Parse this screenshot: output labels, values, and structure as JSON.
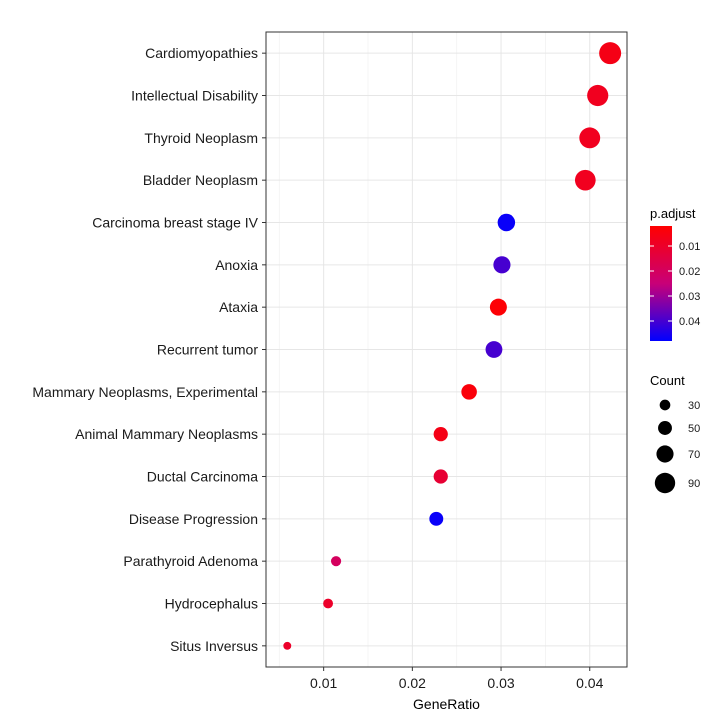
{
  "chart_data": {
    "type": "scatter",
    "title": "",
    "xlabel": "GeneRatio",
    "ylabel": "",
    "xlim": [
      0.0035,
      0.0442
    ],
    "xticks": [
      0.01,
      0.02,
      0.03,
      0.04
    ],
    "xtick_labels": [
      "0.01",
      "0.02",
      "0.03",
      "0.04"
    ],
    "grid": true,
    "points": [
      {
        "term": "Cardiomyopathies",
        "x": 0.0423,
        "count": 100,
        "p_adjust": 0.006
      },
      {
        "term": "Intellectual Disability",
        "x": 0.0409,
        "count": 95,
        "p_adjust": 0.008
      },
      {
        "term": "Thyroid Neoplasm",
        "x": 0.04,
        "count": 93,
        "p_adjust": 0.008
      },
      {
        "term": "Bladder Neoplasm",
        "x": 0.0395,
        "count": 92,
        "p_adjust": 0.008
      },
      {
        "term": "Carcinoma breast stage IV",
        "x": 0.0306,
        "count": 72,
        "p_adjust": 0.047
      },
      {
        "term": "Anoxia",
        "x": 0.0301,
        "count": 70,
        "p_adjust": 0.04
      },
      {
        "term": "Ataxia",
        "x": 0.0297,
        "count": 69,
        "p_adjust": 0.003
      },
      {
        "term": "Recurrent tumor",
        "x": 0.0292,
        "count": 68,
        "p_adjust": 0.04
      },
      {
        "term": "Mammary Neoplasms, Experimental",
        "x": 0.0264,
        "count": 60,
        "p_adjust": 0.004
      },
      {
        "term": "Animal Mammary Neoplasms",
        "x": 0.0232,
        "count": 52,
        "p_adjust": 0.006
      },
      {
        "term": "Ductal Carcinoma",
        "x": 0.0232,
        "count": 52,
        "p_adjust": 0.012
      },
      {
        "term": "Disease Progression",
        "x": 0.0227,
        "count": 50,
        "p_adjust": 0.047
      },
      {
        "term": "Parathyroid Adenoma",
        "x": 0.0114,
        "count": 27,
        "p_adjust": 0.02
      },
      {
        "term": "Hydrocephalus",
        "x": 0.0105,
        "count": 25,
        "p_adjust": 0.01
      },
      {
        "term": "Situs Inversus",
        "x": 0.0059,
        "count": 13,
        "p_adjust": 0.01
      }
    ],
    "color_legend": {
      "title": "p.adjust",
      "ticks": [
        0.01,
        0.02,
        0.03,
        0.04
      ],
      "tick_labels": [
        "0.01",
        "0.02",
        "0.03",
        "0.04"
      ],
      "range": [
        0.002,
        0.048
      ],
      "low_color": "#FF0000",
      "high_color": "#0000FF"
    },
    "size_legend": {
      "title": "Count",
      "values": [
        30,
        50,
        70,
        90
      ],
      "labels": [
        "30",
        "50",
        "70",
        "90"
      ]
    },
    "legend_position": "right"
  }
}
